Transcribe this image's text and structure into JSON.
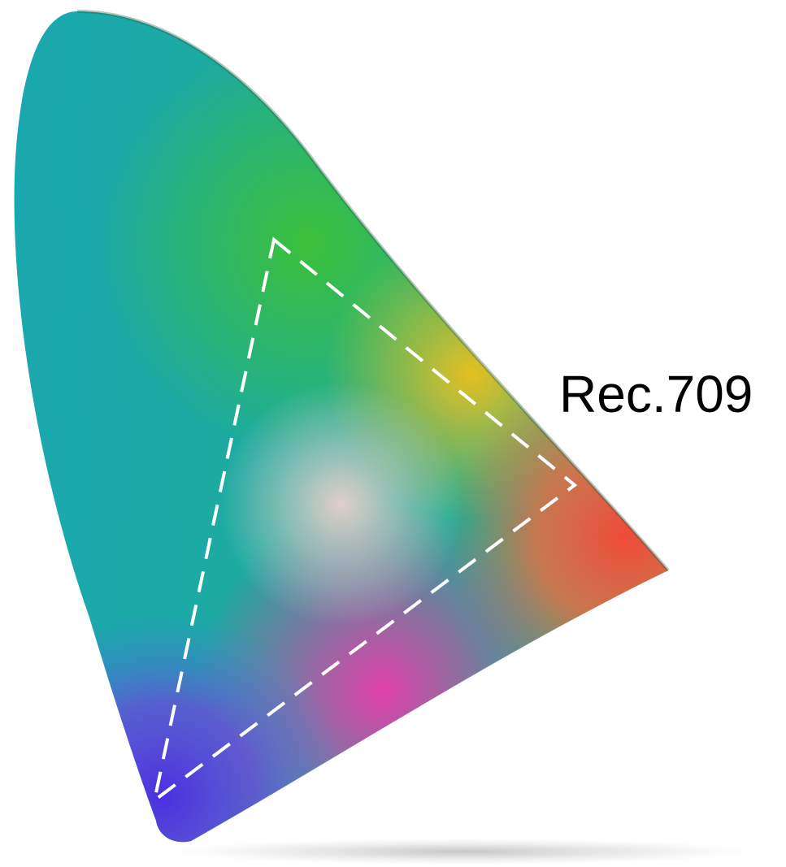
{
  "label": "Rec.709"
}
